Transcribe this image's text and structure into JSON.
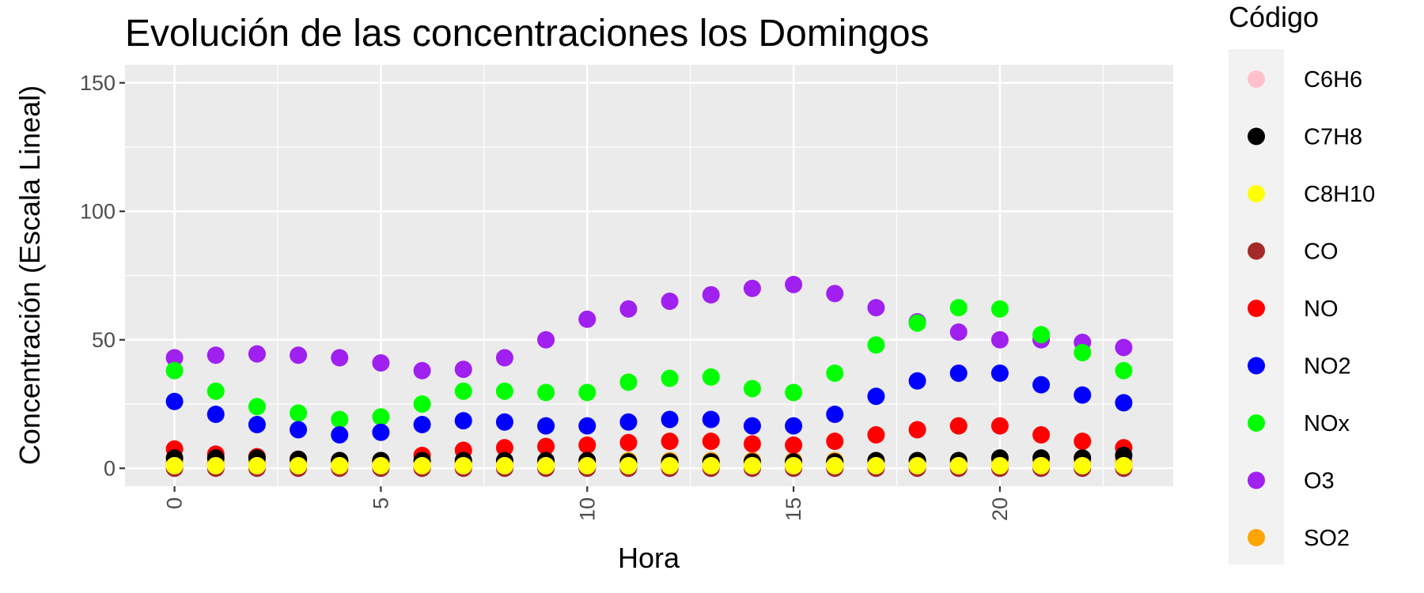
{
  "chart_data": {
    "type": "scatter",
    "title": "Evolución de las concentraciones los Domingos",
    "xlabel": "Hora",
    "ylabel": "Concentración (Escala Lineal)",
    "xlim": [
      -1.2,
      24.2
    ],
    "ylim": [
      -7,
      157
    ],
    "xticks": [
      0,
      5,
      10,
      15,
      20
    ],
    "yticks": [
      0,
      50,
      100,
      150
    ],
    "grid": true,
    "legend_title": "Código",
    "legend_position": "right",
    "x": [
      0,
      1,
      2,
      3,
      4,
      5,
      6,
      7,
      8,
      9,
      10,
      11,
      12,
      13,
      14,
      15,
      16,
      17,
      18,
      19,
      20,
      21,
      22,
      23
    ],
    "series": [
      {
        "name": "C6H6",
        "color": "#FFC0CB",
        "values": [
          1,
          1,
          1,
          1,
          1,
          1,
          1,
          1,
          1,
          1,
          1,
          1,
          1,
          1,
          1,
          1,
          1,
          1,
          1,
          1,
          1,
          1,
          1,
          1
        ]
      },
      {
        "name": "C7H8",
        "color": "#000000",
        "values": [
          4,
          4,
          4,
          3.5,
          3,
          3,
          3,
          3,
          3,
          3,
          3,
          2.5,
          2.5,
          2.5,
          2.5,
          2.5,
          2.5,
          3,
          3,
          3,
          4,
          4,
          4,
          5
        ]
      },
      {
        "name": "C8H10",
        "color": "#FFFF00",
        "values": [
          1,
          1,
          1,
          1,
          1,
          1,
          1,
          1,
          1,
          1,
          1,
          1,
          1,
          1,
          1,
          1,
          1,
          1,
          1,
          1,
          1,
          1,
          1,
          1
        ]
      },
      {
        "name": "CO",
        "color": "#A52A2A",
        "values": [
          0,
          0,
          0,
          0,
          0,
          0,
          0,
          0,
          0,
          0,
          0,
          0,
          0,
          0,
          0,
          0,
          0,
          0,
          0,
          0,
          0,
          0,
          0,
          0
        ]
      },
      {
        "name": "NO",
        "color": "#FF0000",
        "values": [
          7.5,
          5.5,
          4.5,
          3.5,
          3,
          3,
          5,
          7,
          8,
          8.5,
          9,
          10,
          10.5,
          10.5,
          9.5,
          9,
          10.5,
          13,
          15,
          16.5,
          16.5,
          13,
          10.5,
          8
        ]
      },
      {
        "name": "NO2",
        "color": "#0000FF",
        "values": [
          26,
          21,
          17,
          15,
          13,
          14,
          17,
          18.5,
          18,
          16.5,
          16.5,
          18,
          19,
          19,
          16.5,
          16.5,
          21,
          28,
          34,
          37,
          37,
          32.5,
          28.5,
          25.5
        ]
      },
      {
        "name": "NOx",
        "color": "#00FF00",
        "values": [
          38,
          30,
          24,
          21.5,
          19,
          20,
          25,
          30,
          30,
          29.5,
          29.5,
          33.5,
          35,
          35.5,
          31,
          29.5,
          37,
          48,
          56.5,
          62.5,
          62,
          52,
          45,
          38
        ]
      },
      {
        "name": "O3",
        "color": "#A020F0",
        "values": [
          43,
          44,
          44.5,
          44,
          43,
          41,
          38,
          38.5,
          43,
          50,
          58,
          62,
          65,
          67.5,
          70,
          71.5,
          68,
          62.5,
          57,
          53,
          50,
          50,
          49,
          47
        ]
      },
      {
        "name": "SO2",
        "color": "#FFA500",
        "values": [
          2.5,
          2.5,
          2.5,
          2.5,
          2.5,
          2.5,
          2.5,
          2.5,
          2.5,
          2.5,
          2.5,
          3,
          3,
          3,
          3,
          3,
          3,
          3,
          3,
          3,
          3,
          3,
          3,
          3
        ]
      }
    ],
    "draw_order": [
      "SO2",
      "O3",
      "NOx",
      "NO2",
      "NO",
      "CO",
      "C7H8",
      "C6H6",
      "C8H10"
    ]
  }
}
